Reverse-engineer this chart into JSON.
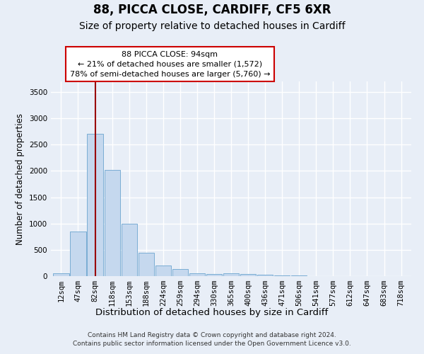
{
  "title": "88, PICCA CLOSE, CARDIFF, CF5 6XR",
  "subtitle": "Size of property relative to detached houses in Cardiff",
  "xlabel": "Distribution of detached houses by size in Cardiff",
  "ylabel": "Number of detached properties",
  "categories": [
    "12sqm",
    "47sqm",
    "82sqm",
    "118sqm",
    "153sqm",
    "188sqm",
    "224sqm",
    "259sqm",
    "294sqm",
    "330sqm",
    "365sqm",
    "400sqm",
    "436sqm",
    "471sqm",
    "506sqm",
    "541sqm",
    "577sqm",
    "612sqm",
    "647sqm",
    "683sqm",
    "718sqm"
  ],
  "values": [
    55,
    850,
    2700,
    2020,
    990,
    450,
    200,
    130,
    60,
    35,
    55,
    35,
    25,
    15,
    10,
    0,
    0,
    0,
    0,
    0,
    0
  ],
  "bar_color": "#c5d8ee",
  "bar_edge_color": "#7aadd4",
  "background_color": "#e8eef7",
  "grid_color": "#ffffff",
  "vline_index": 2,
  "vline_color": "#990000",
  "annotation_text": "88 PICCA CLOSE: 94sqm\n← 21% of detached houses are smaller (1,572)\n78% of semi-detached houses are larger (5,760) →",
  "annotation_box_color": "#ffffff",
  "annotation_box_edge": "#cc0000",
  "footer": "Contains HM Land Registry data © Crown copyright and database right 2024.\nContains public sector information licensed under the Open Government Licence v3.0.",
  "ylim": [
    0,
    3700
  ],
  "yticks": [
    0,
    500,
    1000,
    1500,
    2000,
    2500,
    3000,
    3500
  ],
  "title_fontsize": 12,
  "subtitle_fontsize": 10,
  "xlabel_fontsize": 9.5,
  "ylabel_fontsize": 8.5,
  "tick_fontsize": 7.5,
  "footer_fontsize": 6.5,
  "annotation_fontsize": 8
}
